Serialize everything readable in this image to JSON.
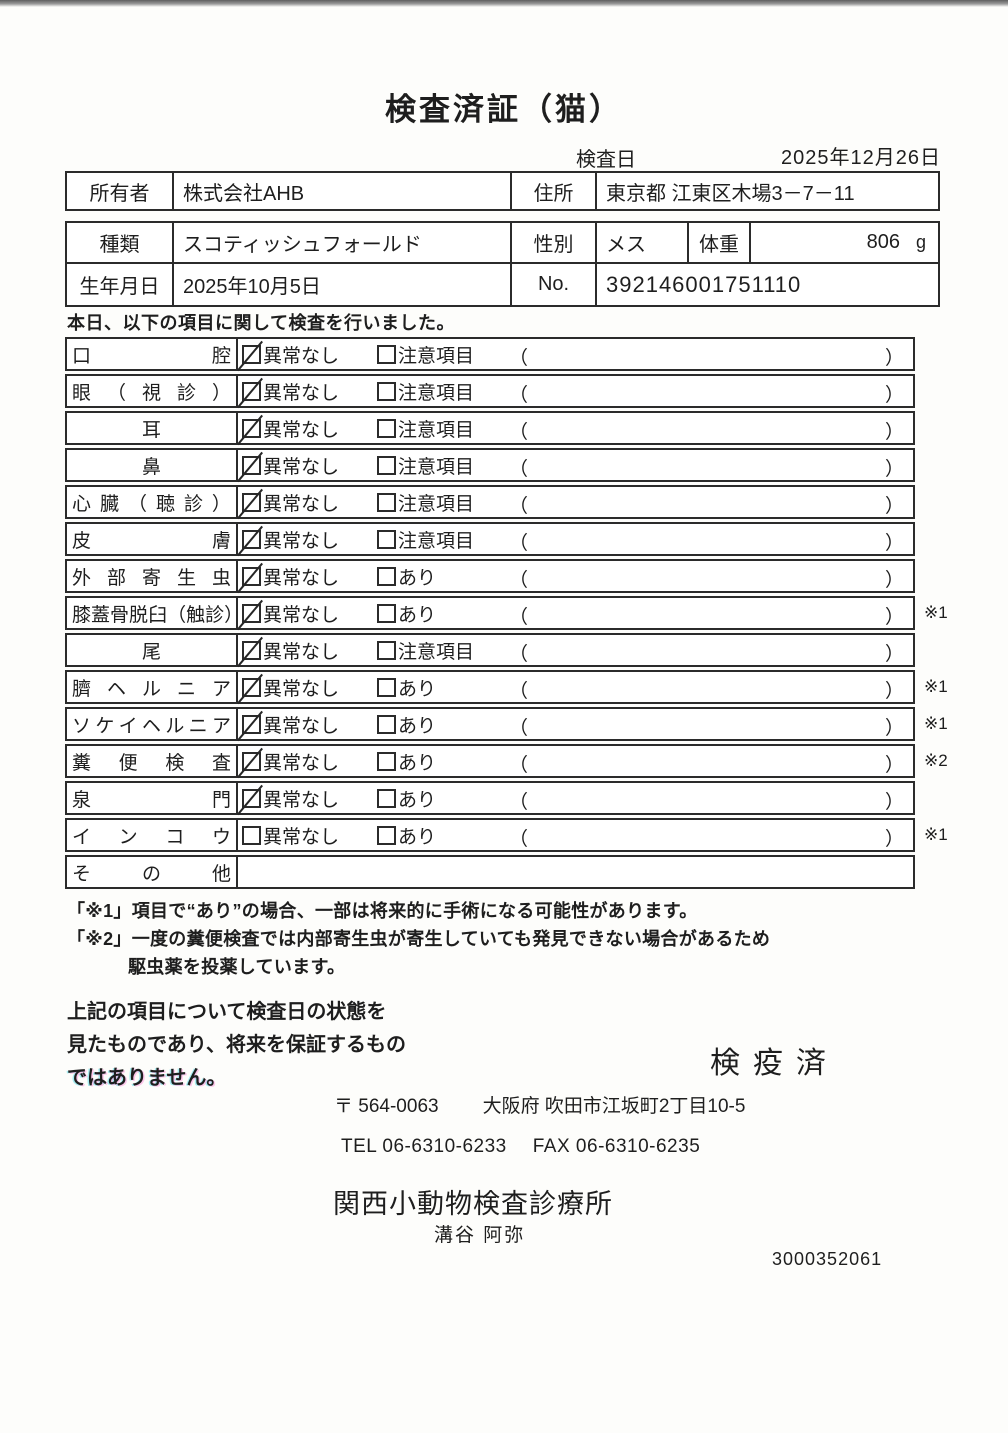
{
  "document": {
    "title": "検査済証（猫）",
    "inspection_date_label": "検査日",
    "inspection_date": "2025年12月26日",
    "doc_number": "3000352061",
    "stamp": "検疫済"
  },
  "owner_table": {
    "owner_label": "所有者",
    "owner_value": "株式会社AHB",
    "address_label": "住所",
    "address_value": "東京都 江東区木場3－7－11"
  },
  "info_table": {
    "breed_label": "種類",
    "breed_value": "スコティッシュフォールド",
    "sex_label": "性別",
    "sex_value": "メス",
    "weight_label": "体重",
    "weight_value": "806",
    "weight_unit": "g",
    "birth_label": "生年月日",
    "birth_value": "2025年10月5日",
    "no_label": "No.",
    "no_value": "392146001751110"
  },
  "intro": "本日、以下の項目に関して検査を行いました。",
  "checklist": {
    "paren_open": "（",
    "paren_close": "）",
    "rows": [
      {
        "label": "口腔",
        "justify": true,
        "opt1": "異常なし",
        "opt1_checked": true,
        "opt2": "注意項目",
        "opt2_checked": false,
        "value": "",
        "note": ""
      },
      {
        "label": "眼（視診）",
        "justify": true,
        "opt1": "異常なし",
        "opt1_checked": true,
        "opt2": "注意項目",
        "opt2_checked": false,
        "value": "",
        "note": ""
      },
      {
        "label": "耳",
        "justify": false,
        "opt1": "異常なし",
        "opt1_checked": true,
        "opt2": "注意項目",
        "opt2_checked": false,
        "value": "",
        "note": ""
      },
      {
        "label": "鼻",
        "justify": false,
        "opt1": "異常なし",
        "opt1_checked": true,
        "opt2": "注意項目",
        "opt2_checked": false,
        "value": "",
        "note": ""
      },
      {
        "label": "心臓（聴診）",
        "justify": true,
        "opt1": "異常なし",
        "opt1_checked": true,
        "opt2": "注意項目",
        "opt2_checked": false,
        "value": "",
        "note": ""
      },
      {
        "label": "皮膚",
        "justify": true,
        "opt1": "異常なし",
        "opt1_checked": true,
        "opt2": "注意項目",
        "opt2_checked": false,
        "value": "",
        "note": ""
      },
      {
        "label": "外部寄生虫",
        "justify": true,
        "opt1": "異常なし",
        "opt1_checked": true,
        "opt2": "あり",
        "opt2_checked": false,
        "value": "",
        "note": ""
      },
      {
        "label": "膝蓋骨脱臼（触診）",
        "justify": true,
        "opt1": "異常なし",
        "opt1_checked": true,
        "opt2": "あり",
        "opt2_checked": false,
        "value": "",
        "note": "※1"
      },
      {
        "label": "尾",
        "justify": false,
        "opt1": "異常なし",
        "opt1_checked": true,
        "opt2": "注意項目",
        "opt2_checked": false,
        "value": "",
        "note": ""
      },
      {
        "label": "臍ヘルニア",
        "justify": true,
        "opt1": "異常なし",
        "opt1_checked": true,
        "opt2": "あり",
        "opt2_checked": false,
        "value": "",
        "note": "※1"
      },
      {
        "label": "ソケイヘルニア",
        "justify": true,
        "opt1": "異常なし",
        "opt1_checked": true,
        "opt2": "あり",
        "opt2_checked": false,
        "value": "",
        "note": "※1"
      },
      {
        "label": "糞便検査",
        "justify": true,
        "opt1": "異常なし",
        "opt1_checked": true,
        "opt2": "あり",
        "opt2_checked": false,
        "value": "",
        "note": "※2"
      },
      {
        "label": "泉門",
        "justify": true,
        "opt1": "異常なし",
        "opt1_checked": true,
        "opt2": "あり",
        "opt2_checked": false,
        "value": "",
        "note": ""
      },
      {
        "label": "インコウ",
        "justify": true,
        "opt1": "異常なし",
        "opt1_checked": false,
        "opt2": "あり",
        "opt2_checked": false,
        "value": "",
        "note": "※1"
      },
      {
        "label": "その他",
        "justify": true,
        "value": "",
        "note": ""
      }
    ]
  },
  "footnotes": {
    "note1": "「※1」項目で“あり”の場合、一部は将来的に手術になる可能性があります。",
    "note2": "「※2」一度の糞便検査では内部寄生虫が寄生していても発見できない場合があるため",
    "note3": "駆虫薬を投薬しています。"
  },
  "closing": {
    "line1": "上記の項目について検査日の状態を",
    "line2": "見たものであり、将来を保証するもの",
    "line3": "ではありません。"
  },
  "clinic": {
    "postal": "〒 564-0063",
    "address": "大阪府 吹田市江坂町2丁目10-5",
    "tel": "TEL 06-6310-6233",
    "fax": "FAX 06-6310-6235",
    "name": "関西小動物検査診療所",
    "signer": "溝谷 阿弥"
  }
}
